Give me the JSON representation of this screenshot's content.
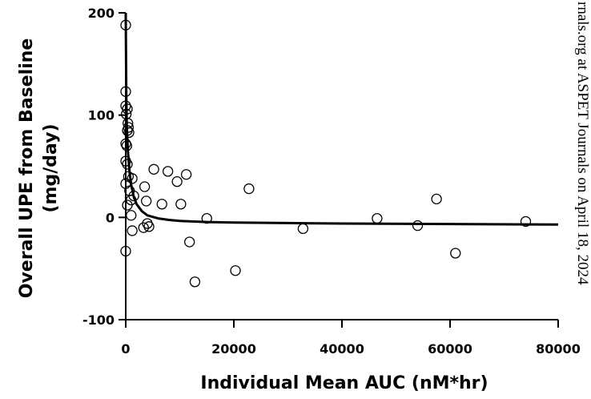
{
  "chart_data": {
    "type": "scatter",
    "title": "",
    "xlabel": "Individual Mean AUC (nM*hr)",
    "ylabel_line1": "Overall UPE from Baseline",
    "ylabel_line2": "(mg/day)",
    "xlim": [
      0,
      80000
    ],
    "ylim": [
      -100,
      200
    ],
    "xticks": [
      0,
      20000,
      40000,
      60000,
      80000
    ],
    "xtick_labels": [
      "0",
      "20000",
      "40000",
      "60000",
      "80000"
    ],
    "yticks": [
      -100,
      0,
      100,
      200
    ],
    "ytick_labels": [
      "-100",
      "0",
      "100",
      "200"
    ],
    "grid": false,
    "legend": "none",
    "marker": "open-circle",
    "points": [
      {
        "x": 0,
        "y": 188
      },
      {
        "x": 0,
        "y": 123
      },
      {
        "x": 0,
        "y": 109
      },
      {
        "x": 300,
        "y": 106
      },
      {
        "x": 100,
        "y": 101
      },
      {
        "x": 400,
        "y": 92
      },
      {
        "x": 500,
        "y": 88
      },
      {
        "x": 300,
        "y": 85
      },
      {
        "x": 600,
        "y": 83
      },
      {
        "x": 0,
        "y": 72
      },
      {
        "x": 200,
        "y": 70
      },
      {
        "x": 0,
        "y": 55
      },
      {
        "x": 300,
        "y": 52
      },
      {
        "x": 500,
        "y": 40
      },
      {
        "x": 1200,
        "y": 38
      },
      {
        "x": 0,
        "y": 33
      },
      {
        "x": 700,
        "y": 26
      },
      {
        "x": 1500,
        "y": 21
      },
      {
        "x": 1000,
        "y": 17
      },
      {
        "x": 300,
        "y": 12
      },
      {
        "x": 1000,
        "y": 2
      },
      {
        "x": 1200,
        "y": -13
      },
      {
        "x": 0,
        "y": -33
      },
      {
        "x": 3500,
        "y": 30
      },
      {
        "x": 3800,
        "y": 16
      },
      {
        "x": 3300,
        "y": -10
      },
      {
        "x": 4000,
        "y": -6
      },
      {
        "x": 4300,
        "y": -9
      },
      {
        "x": 5200,
        "y": 47
      },
      {
        "x": 6700,
        "y": 13
      },
      {
        "x": 7800,
        "y": 45
      },
      {
        "x": 9500,
        "y": 35
      },
      {
        "x": 10200,
        "y": 13
      },
      {
        "x": 11200,
        "y": 42
      },
      {
        "x": 11800,
        "y": -24
      },
      {
        "x": 12800,
        "y": -63
      },
      {
        "x": 15000,
        "y": -1
      },
      {
        "x": 20300,
        "y": -52
      },
      {
        "x": 22800,
        "y": 28
      },
      {
        "x": 32800,
        "y": -11
      },
      {
        "x": 46500,
        "y": -1
      },
      {
        "x": 54000,
        "y": -8
      },
      {
        "x": 57500,
        "y": 18
      },
      {
        "x": 61000,
        "y": -35
      },
      {
        "x": 74000,
        "y": -4
      }
    ],
    "fit_curve": [
      {
        "x": 0,
        "y": 200
      },
      {
        "x": 100,
        "y": 120
      },
      {
        "x": 200,
        "y": 90
      },
      {
        "x": 400,
        "y": 65
      },
      {
        "x": 700,
        "y": 45
      },
      {
        "x": 1000,
        "y": 32
      },
      {
        "x": 1500,
        "y": 20
      },
      {
        "x": 2000,
        "y": 13
      },
      {
        "x": 3000,
        "y": 6
      },
      {
        "x": 4000,
        "y": 2
      },
      {
        "x": 6000,
        "y": -1
      },
      {
        "x": 8000,
        "y": -2.5
      },
      {
        "x": 10000,
        "y": -3.5
      },
      {
        "x": 15000,
        "y": -4.5
      },
      {
        "x": 20000,
        "y": -5
      },
      {
        "x": 30000,
        "y": -5.5
      },
      {
        "x": 40000,
        "y": -6
      },
      {
        "x": 60000,
        "y": -6.5
      },
      {
        "x": 80000,
        "y": -7
      }
    ]
  },
  "watermark": "rnals.org at ASPET Journals on April 18, 2024"
}
